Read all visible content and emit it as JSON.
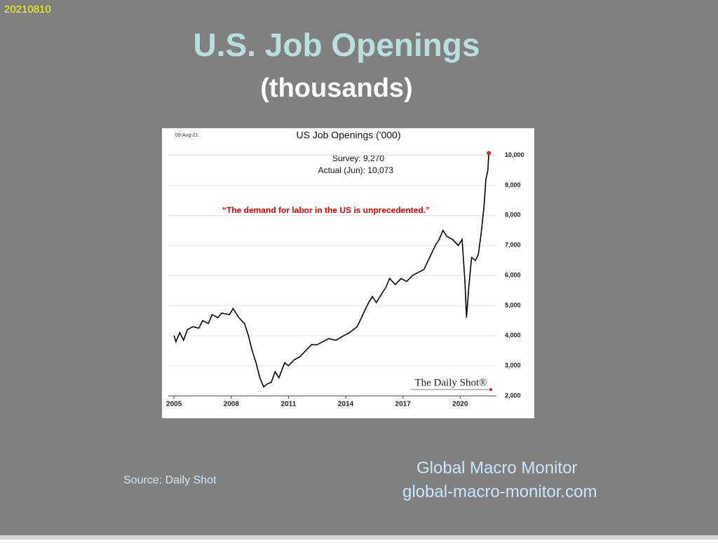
{
  "slide": {
    "date": "20210810",
    "title": "U.S. Job Openings",
    "subtitle": "(thousands)",
    "source": "Source: Daily Shot",
    "brand": "Global Macro Monitor",
    "url": "global-macro-monitor.com"
  },
  "chart_data": {
    "type": "line",
    "title": "US Job Openings ('000)",
    "date_label": "09-Aug-21",
    "survey_label": "Survey:  9,270",
    "actual_label": "Actual (Jun):  10,073",
    "quote": "“The demand for labor in the US is unprecedented.”",
    "logo": "The Daily Shot®",
    "color": "#000000",
    "end_marker_color": "#e02020",
    "grid": true,
    "x": [
      2005.0,
      2005.1,
      2005.3,
      2005.5,
      2005.7,
      2006.0,
      2006.3,
      2006.5,
      2006.8,
      2007.0,
      2007.3,
      2007.5,
      2007.9,
      2008.1,
      2008.4,
      2008.7,
      2008.9,
      2009.1,
      2009.3,
      2009.5,
      2009.7,
      2009.9,
      2010.1,
      2010.3,
      2010.5,
      2010.8,
      2011.0,
      2011.3,
      2011.6,
      2011.9,
      2012.2,
      2012.5,
      2012.8,
      2013.1,
      2013.5,
      2013.9,
      2014.2,
      2014.6,
      2014.9,
      2015.2,
      2015.4,
      2015.6,
      2015.9,
      2016.1,
      2016.3,
      2016.6,
      2016.9,
      2017.2,
      2017.5,
      2017.8,
      2018.1,
      2018.4,
      2018.7,
      2018.9,
      2019.1,
      2019.3,
      2019.6,
      2019.9,
      2020.1,
      2020.25,
      2020.33,
      2020.45,
      2020.6,
      2020.8,
      2020.95,
      2021.1,
      2021.25,
      2021.35,
      2021.45,
      2021.5
    ],
    "values": [
      4000,
      3800,
      4100,
      3850,
      4200,
      4300,
      4250,
      4500,
      4400,
      4700,
      4600,
      4750,
      4700,
      4900,
      4600,
      4400,
      4000,
      3500,
      3100,
      2600,
      2300,
      2400,
      2450,
      2800,
      2600,
      3100,
      3000,
      3200,
      3300,
      3500,
      3700,
      3700,
      3800,
      3900,
      3850,
      4000,
      4100,
      4300,
      4700,
      5100,
      5300,
      5100,
      5400,
      5600,
      5900,
      5700,
      5900,
      5800,
      6000,
      6100,
      6200,
      6600,
      7000,
      7200,
      7500,
      7300,
      7200,
      7000,
      7200,
      5800,
      4600,
      5600,
      6600,
      6500,
      6700,
      7400,
      8300,
      9200,
      9500,
      10073
    ],
    "xlim": [
      2004.7,
      2021.9
    ],
    "xticks": [
      2005,
      2008,
      2011,
      2014,
      2017,
      2020
    ],
    "ylim": [
      2000,
      10500
    ],
    "yticks": [
      {
        "value": 2000,
        "label": "2,000"
      },
      {
        "value": 3000,
        "label": "3,000"
      },
      {
        "value": 4000,
        "label": "4,000"
      },
      {
        "value": 5000,
        "label": "5,000"
      },
      {
        "value": 6000,
        "label": "6,000"
      },
      {
        "value": 7000,
        "label": "7,000"
      },
      {
        "value": 8000,
        "label": "8,000"
      },
      {
        "value": 9000,
        "label": "9,000"
      },
      {
        "value": 10000,
        "label": "10,000"
      }
    ]
  }
}
